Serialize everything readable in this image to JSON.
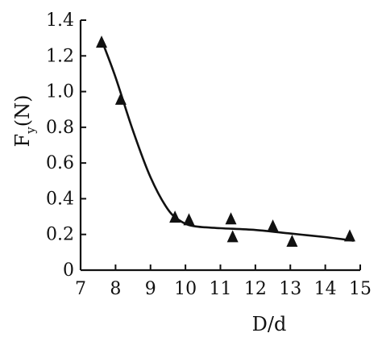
{
  "chart_data": {
    "type": "scatter",
    "xlabel": "D/d",
    "ylabel_main": "F",
    "ylabel_sub": "y",
    "ylabel_unit": "(N)",
    "xlim": [
      7,
      15
    ],
    "ylim": [
      0,
      1.4
    ],
    "x_ticks": [
      "7",
      "8",
      "9",
      "10",
      "11",
      "12",
      "13",
      "14",
      "15"
    ],
    "y_ticks": [
      "0",
      "0.2",
      "0.4",
      "0.6",
      "0.8",
      "1.0",
      "1.2",
      "1.4"
    ],
    "grid": false,
    "series": [
      {
        "marker": "triangle",
        "points": [
          {
            "x": 7.6,
            "y": 1.28
          },
          {
            "x": 8.15,
            "y": 0.96
          },
          {
            "x": 9.7,
            "y": 0.3
          },
          {
            "x": 10.1,
            "y": 0.285
          },
          {
            "x": 11.3,
            "y": 0.29
          },
          {
            "x": 11.35,
            "y": 0.19
          },
          {
            "x": 12.5,
            "y": 0.25
          },
          {
            "x": 13.05,
            "y": 0.165
          },
          {
            "x": 14.7,
            "y": 0.195
          }
        ]
      }
    ],
    "fit_curve": [
      {
        "x": 7.6,
        "y": 1.29
      },
      {
        "x": 8.0,
        "y": 1.08
      },
      {
        "x": 8.5,
        "y": 0.78
      },
      {
        "x": 9.0,
        "y": 0.52
      },
      {
        "x": 9.5,
        "y": 0.34
      },
      {
        "x": 9.9,
        "y": 0.27
      },
      {
        "x": 10.3,
        "y": 0.245
      },
      {
        "x": 11.0,
        "y": 0.235
      },
      {
        "x": 12.0,
        "y": 0.225
      },
      {
        "x": 13.0,
        "y": 0.205
      },
      {
        "x": 14.0,
        "y": 0.185
      },
      {
        "x": 14.8,
        "y": 0.165
      }
    ]
  }
}
